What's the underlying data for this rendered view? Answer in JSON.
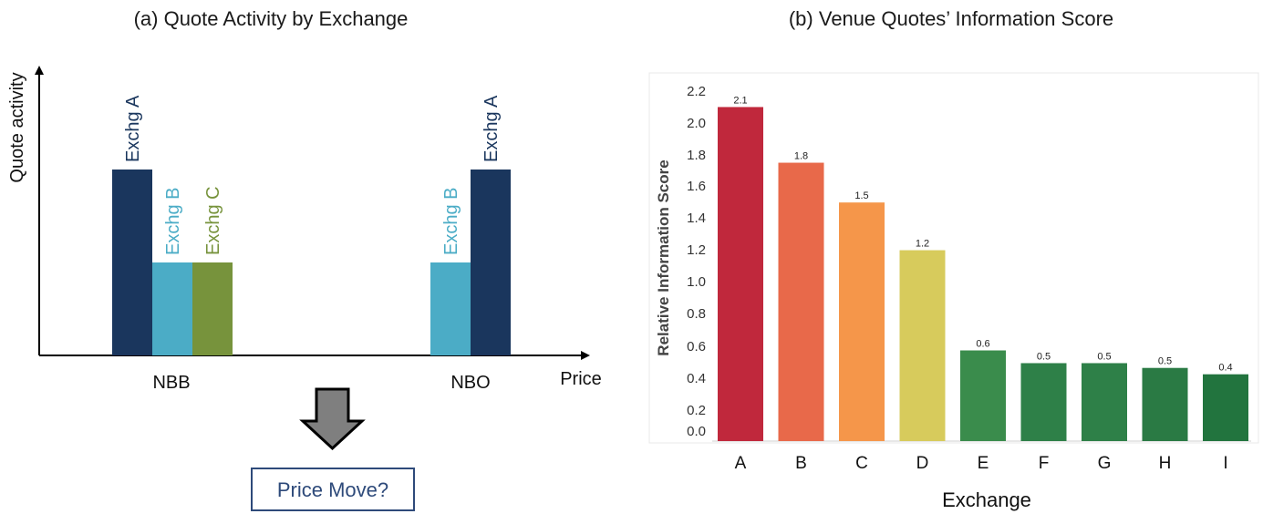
{
  "chart_data": [
    {
      "type": "bar",
      "title": "(a) Quote Activity by Exchange",
      "ylabel": "Quote activity",
      "xlabel": "Price",
      "groups": [
        {
          "name": "NBB",
          "bars": [
            {
              "label": "Exchg A",
              "value": 2,
              "color": "#1a365d"
            },
            {
              "label": "Exchg B",
              "value": 1,
              "color": "#4bacc6"
            },
            {
              "label": "Exchg C",
              "value": 1,
              "color": "#77933c"
            }
          ]
        },
        {
          "name": "NBO",
          "bars": [
            {
              "label": "Exchg B",
              "value": 1,
              "color": "#4bacc6"
            },
            {
              "label": "Exchg A",
              "value": 2,
              "color": "#1a365d"
            }
          ]
        }
      ],
      "annotation": "Price Move?"
    },
    {
      "type": "bar",
      "title": "(b) Venue Quotes’ Information Score",
      "xlabel": "Exchange",
      "ylabel": "Relative Information Score",
      "categories": [
        "A",
        "B",
        "C",
        "D",
        "E",
        "F",
        "G",
        "H",
        "I"
      ],
      "values": [
        2.1,
        1.75,
        1.5,
        1.2,
        0.57,
        0.49,
        0.49,
        0.46,
        0.42
      ],
      "data_labels": [
        "2.1",
        "1.8",
        "1.5",
        "1.2",
        "0.6",
        "0.5",
        "0.5",
        "0.5",
        "0.4"
      ],
      "colors": [
        "#c0283c",
        "#e8694a",
        "#f5964a",
        "#d7cb5c",
        "#3a8c4c",
        "#2e8048",
        "#2e8048",
        "#2a7a44",
        "#22743e"
      ],
      "yticks": [
        "0.0",
        "0.2",
        "0.4",
        "0.6",
        "0.8",
        "1.0",
        "1.2",
        "1.4",
        "1.6",
        "1.8",
        "2.0",
        "2.2"
      ],
      "ylim": [
        0,
        2.2
      ],
      "grid": false
    }
  ]
}
